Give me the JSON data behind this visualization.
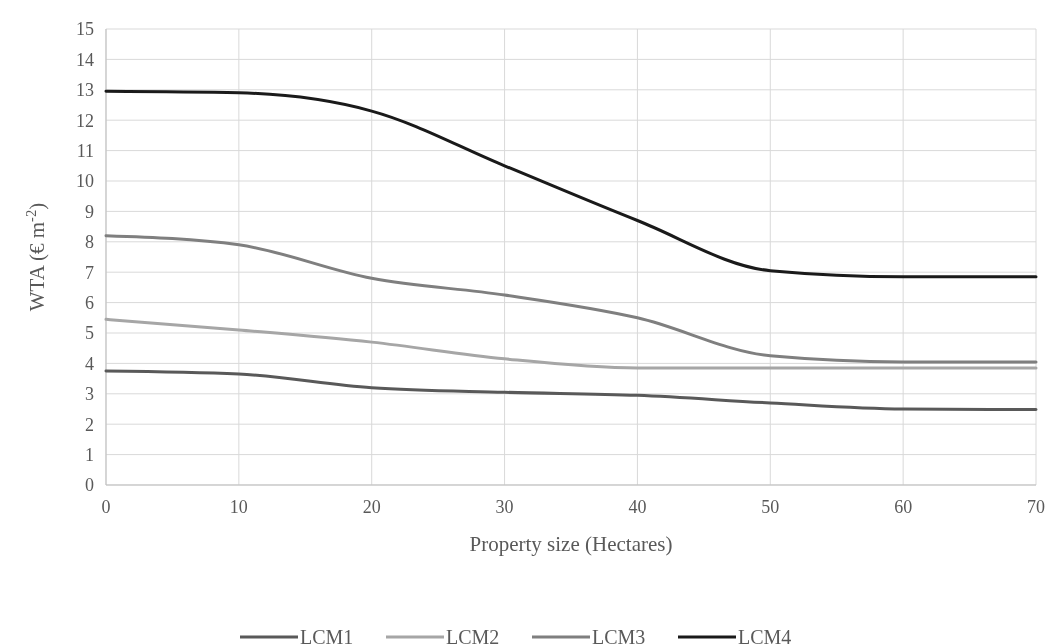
{
  "chart_data": {
    "type": "line",
    "xlabel": "Property size (Hectares)",
    "ylabel": "WTA (€ m$^{-2}$)",
    "x": [
      0,
      10,
      20,
      30,
      40,
      50,
      60,
      70
    ],
    "xlim": [
      0,
      70
    ],
    "xticks": [
      0,
      10,
      20,
      30,
      40,
      50,
      60,
      70
    ],
    "ylim": [
      0,
      15
    ],
    "yticks": [
      0,
      1,
      2,
      3,
      4,
      5,
      6,
      7,
      8,
      9,
      10,
      11,
      12,
      13,
      14,
      15
    ],
    "grid": true,
    "legend": "bottom",
    "marker": "none",
    "line_style": "solid",
    "series": [
      {
        "name": "LCM1",
        "color": "#595959",
        "values": [
          3.75,
          3.65,
          3.2,
          3.05,
          2.95,
          2.7,
          2.5,
          2.48
        ]
      },
      {
        "name": "LCM2",
        "color": "#a6a6a6",
        "values": [
          5.45,
          5.1,
          4.7,
          4.15,
          3.85,
          3.85,
          3.85,
          3.85
        ]
      },
      {
        "name": "LCM3",
        "color": "#7f7f7f",
        "values": [
          8.2,
          7.9,
          6.8,
          6.25,
          5.5,
          4.25,
          4.05,
          4.05
        ]
      },
      {
        "name": "LCM4",
        "color": "#1a1a1a",
        "values": [
          12.95,
          12.9,
          12.3,
          10.5,
          8.7,
          7.05,
          6.85,
          6.85
        ]
      }
    ]
  }
}
